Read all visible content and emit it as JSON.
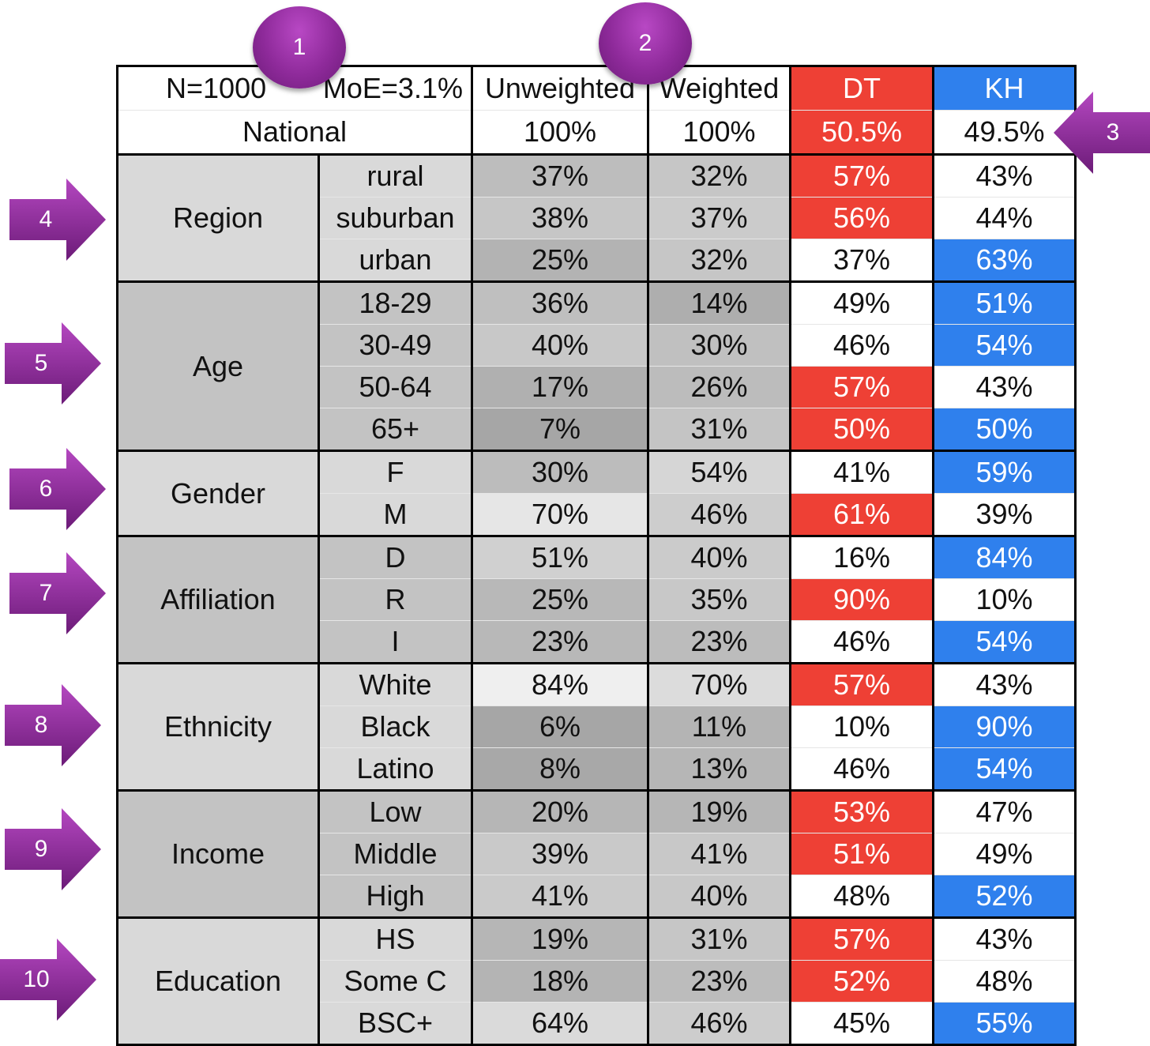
{
  "header": {
    "n": "N=1000",
    "moe": "MoE=3.1%",
    "unweighted": "Unweighted",
    "weighted": "Weighted",
    "dt": "DT",
    "kh": "KH"
  },
  "national": {
    "label": "National",
    "unweighted": "100%",
    "weighted": "100%",
    "dt": "50.5%",
    "kh": "49.5%"
  },
  "groups": [
    {
      "name": "Region",
      "rows": [
        {
          "sub": "rural",
          "unweighted": "37%",
          "weighted": "32%",
          "dt": "57%",
          "kh": "43%"
        },
        {
          "sub": "suburban",
          "unweighted": "38%",
          "weighted": "37%",
          "dt": "56%",
          "kh": "44%"
        },
        {
          "sub": "urban",
          "unweighted": "25%",
          "weighted": "32%",
          "dt": "37%",
          "kh": "63%"
        }
      ]
    },
    {
      "name": "Age",
      "rows": [
        {
          "sub": "18-29",
          "unweighted": "36%",
          "weighted": "14%",
          "dt": "49%",
          "kh": "51%"
        },
        {
          "sub": "30-49",
          "unweighted": "40%",
          "weighted": "30%",
          "dt": "46%",
          "kh": "54%"
        },
        {
          "sub": "50-64",
          "unweighted": "17%",
          "weighted": "26%",
          "dt": "57%",
          "kh": "43%"
        },
        {
          "sub": "65+",
          "unweighted": "7%",
          "weighted": "31%",
          "dt": "50%",
          "kh": "50%"
        }
      ]
    },
    {
      "name": "Gender",
      "rows": [
        {
          "sub": "F",
          "unweighted": "30%",
          "weighted": "54%",
          "dt": "41%",
          "kh": "59%"
        },
        {
          "sub": "M",
          "unweighted": "70%",
          "weighted": "46%",
          "dt": "61%",
          "kh": "39%"
        }
      ]
    },
    {
      "name": "Affiliation",
      "rows": [
        {
          "sub": "D",
          "unweighted": "51%",
          "weighted": "40%",
          "dt": "16%",
          "kh": "84%"
        },
        {
          "sub": "R",
          "unweighted": "25%",
          "weighted": "35%",
          "dt": "90%",
          "kh": "10%"
        },
        {
          "sub": "I",
          "unweighted": "23%",
          "weighted": "23%",
          "dt": "46%",
          "kh": "54%"
        }
      ]
    },
    {
      "name": "Ethnicity",
      "rows": [
        {
          "sub": "White",
          "unweighted": "84%",
          "weighted": "70%",
          "dt": "57%",
          "kh": "43%"
        },
        {
          "sub": "Black",
          "unweighted": "6%",
          "weighted": "11%",
          "dt": "10%",
          "kh": "90%"
        },
        {
          "sub": "Latino",
          "unweighted": "8%",
          "weighted": "13%",
          "dt": "46%",
          "kh": "54%"
        }
      ]
    },
    {
      "name": "Income",
      "rows": [
        {
          "sub": "Low",
          "unweighted": "20%",
          "weighted": "19%",
          "dt": "53%",
          "kh": "47%"
        },
        {
          "sub": "Middle",
          "unweighted": "39%",
          "weighted": "41%",
          "dt": "51%",
          "kh": "49%"
        },
        {
          "sub": "High",
          "unweighted": "41%",
          "weighted": "40%",
          "dt": "48%",
          "kh": "52%"
        }
      ]
    },
    {
      "name": "Education",
      "rows": [
        {
          "sub": "HS",
          "unweighted": "19%",
          "weighted": "31%",
          "dt": "57%",
          "kh": "43%"
        },
        {
          "sub": "Some C",
          "unweighted": "18%",
          "weighted": "23%",
          "dt": "52%",
          "kh": "48%"
        },
        {
          "sub": "BSC+",
          "unweighted": "64%",
          "weighted": "46%",
          "dt": "45%",
          "kh": "55%"
        }
      ]
    }
  ],
  "callouts": {
    "badges": [
      "1",
      "2"
    ],
    "arrows": [
      "3",
      "4",
      "5",
      "6",
      "7",
      "8",
      "9",
      "10"
    ]
  },
  "colors": {
    "dt_red": "#ee4035",
    "kh_blue": "#2f80ed",
    "callout_purple": "#8e2a9a",
    "panel_light": "#d9d9d9",
    "panel_dark": "#c3c3c3"
  }
}
